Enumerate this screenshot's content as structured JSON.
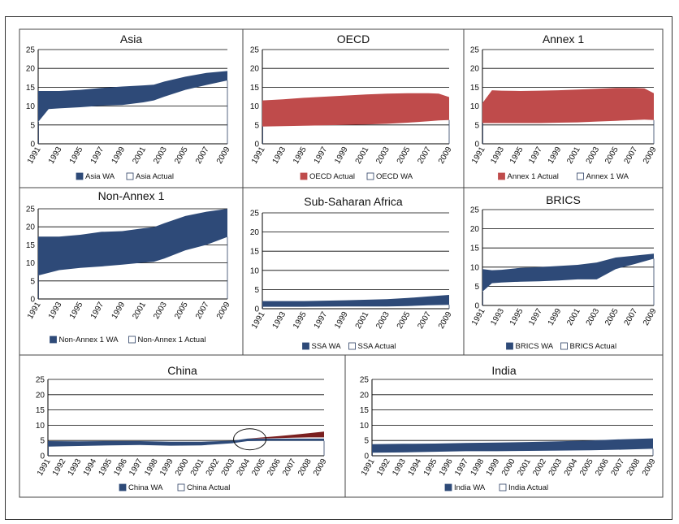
{
  "colors": {
    "wa": "#2e4a78",
    "actual_red": "#bf4b4b",
    "china_red": "#7a1f1f",
    "line": "#2b3e63",
    "panel_border": "#444444"
  },
  "chart_data": [
    {
      "id": "asia",
      "type": "area",
      "title": "Asia",
      "ylim": [
        0,
        25
      ],
      "yticks": [
        "0",
        "5",
        "10",
        "15",
        "20",
        "25"
      ],
      "xlabels": [
        "1991",
        "1993",
        "1995",
        "1997",
        "1999",
        "2001",
        "2003",
        "2005",
        "2007",
        "2009"
      ],
      "xvals": [
        1991,
        1992,
        1993,
        1995,
        1997,
        1999,
        2001,
        2002,
        2003,
        2005,
        2007,
        2009
      ],
      "upper": [
        14,
        14,
        14,
        14.3,
        14.8,
        15.2,
        15.5,
        15.7,
        16.5,
        17.8,
        18.8,
        19.3
      ],
      "lower": [
        5.8,
        9.2,
        9.4,
        9.7,
        10.1,
        10.3,
        11,
        11.5,
        12.5,
        14.3,
        15.6,
        16.8
      ],
      "fill": "wa",
      "legend": [
        "Asia WA",
        "Asia  Actual"
      ]
    },
    {
      "id": "oecd",
      "type": "area",
      "title": "OECD",
      "ylim": [
        0,
        25
      ],
      "yticks": [
        "0",
        "5",
        "10",
        "15",
        "20",
        "25"
      ],
      "xlabels": [
        "1991",
        "1993",
        "1995",
        "1997",
        "1999",
        "2001",
        "2003",
        "2005",
        "2007",
        "2009"
      ],
      "xvals": [
        1991,
        1993,
        1995,
        1997,
        1999,
        2001,
        2003,
        2005,
        2007,
        2008,
        2009
      ],
      "upper": [
        11.5,
        11.8,
        12.2,
        12.5,
        12.8,
        13.1,
        13.3,
        13.4,
        13.4,
        13.3,
        12.4
      ],
      "lower": [
        4.6,
        4.7,
        4.8,
        4.9,
        5.0,
        5.1,
        5.3,
        5.6,
        6.0,
        6.2,
        6.3
      ],
      "fill": "actual_red",
      "legend": [
        "OECD Actual",
        "OECD WA"
      ]
    },
    {
      "id": "annex1",
      "type": "area",
      "title": "Annex 1",
      "ylim": [
        0,
        25
      ],
      "yticks": [
        "0",
        "5",
        "10",
        "15",
        "20",
        "25"
      ],
      "xlabels": [
        "1991",
        "1993",
        "1995",
        "1997",
        "1999",
        "2001",
        "2003",
        "2005",
        "2007",
        "2009"
      ],
      "xvals": [
        1991,
        1992,
        1993,
        1995,
        1997,
        1999,
        2001,
        2003,
        2005,
        2007,
        2008,
        2009
      ],
      "upper": [
        10.8,
        14.2,
        14.1,
        14.0,
        14.1,
        14.2,
        14.4,
        14.6,
        14.8,
        14.8,
        14.7,
        13.4
      ],
      "lower": [
        5.5,
        5.5,
        5.5,
        5.5,
        5.5,
        5.6,
        5.7,
        5.9,
        6.1,
        6.3,
        6.4,
        6.3
      ],
      "fill": "actual_red",
      "legend": [
        "Annex 1 Actual",
        "Annex 1 WA"
      ]
    },
    {
      "id": "nonannex1",
      "type": "area",
      "title": "Non-Annex 1",
      "ylim": [
        0,
        25
      ],
      "yticks": [
        "0",
        "5",
        "10",
        "15",
        "20",
        "25"
      ],
      "xlabels": [
        "1991",
        "1993",
        "1995",
        "1997",
        "1999",
        "2001",
        "2003",
        "2005",
        "2007",
        "2009"
      ],
      "xvals": [
        1991,
        1993,
        1995,
        1997,
        1999,
        2001,
        2002,
        2003,
        2005,
        2007,
        2009
      ],
      "upper": [
        17.3,
        17.3,
        17.8,
        18.6,
        18.8,
        19.6,
        19.9,
        21,
        23,
        24.2,
        25
      ],
      "lower": [
        6.5,
        8,
        8.6,
        9,
        9.5,
        10.1,
        10.3,
        11.2,
        13.5,
        15,
        17.2
      ],
      "fill": "wa",
      "legend": [
        "Non-Annex 1 WA",
        "Non-Annex 1 Actual"
      ]
    },
    {
      "id": "ssa",
      "type": "area",
      "title": "Sub-Saharan Africa",
      "ylim": [
        0,
        25
      ],
      "yticks": [
        "0",
        "5",
        "10",
        "15",
        "20",
        "25"
      ],
      "xlabels": [
        "1991",
        "1993",
        "1995",
        "1997",
        "1999",
        "2001",
        "2003",
        "2005",
        "2007",
        "2009"
      ],
      "xvals": [
        1991,
        1995,
        1999,
        2003,
        2005,
        2007,
        2009
      ],
      "upper": [
        2,
        2,
        2.2,
        2.5,
        2.8,
        3.2,
        3.6
      ],
      "lower": [
        0.5,
        0.5,
        0.6,
        0.6,
        0.7,
        0.9,
        1.0
      ],
      "fill": "wa",
      "legend": [
        "SSA WA",
        "SSA  Actual"
      ]
    },
    {
      "id": "brics",
      "type": "area",
      "title": "BRICS",
      "ylim": [
        0,
        25
      ],
      "yticks": [
        "0",
        "5",
        "10",
        "15",
        "20",
        "25"
      ],
      "xlabels": [
        "1991",
        "1993",
        "1995",
        "1997",
        "1999",
        "2001",
        "2003",
        "2005",
        "2007",
        "2009"
      ],
      "xvals": [
        1991,
        1992,
        1993,
        1995,
        1997,
        1999,
        2001,
        2003,
        2005,
        2007,
        2009
      ],
      "upper": [
        9.5,
        9.2,
        9.3,
        9.8,
        10,
        10.3,
        10.6,
        11.2,
        12.5,
        13.0,
        13.5
      ],
      "lower": [
        3.6,
        5.8,
        6,
        6.2,
        6.3,
        6.5,
        6.8,
        6.8,
        9.5,
        10.8,
        12.2
      ],
      "fill": "wa",
      "legend": [
        "BRICS WA",
        "BRICS Actual"
      ]
    },
    {
      "id": "china",
      "type": "area",
      "title": "China",
      "ylim": [
        0,
        25
      ],
      "yticks": [
        "0",
        "5",
        "10",
        "15",
        "20",
        "25"
      ],
      "xlabels": [
        "1991",
        "1992",
        "1993",
        "1994",
        "1995",
        "1996",
        "1997",
        "1998",
        "1999",
        "2000",
        "2001",
        "2002",
        "2003",
        "2004",
        "2005",
        "2006",
        "2007",
        "2008",
        "2009"
      ],
      "xvals": [
        1991,
        1993,
        1995,
        1997,
        1999,
        2001,
        2003,
        2004,
        2005,
        2006,
        2007,
        2008,
        2009
      ],
      "upper": [
        4.8,
        4.7,
        4.8,
        4.8,
        4.6,
        4.6,
        4.9,
        5.6,
        5.6,
        5.6,
        5.6,
        5.6,
        5.6
      ],
      "lower": [
        3.0,
        3.2,
        3.4,
        3.5,
        3.3,
        3.4,
        4.1,
        4.8,
        4.9,
        4.9,
        4.9,
        4.9,
        4.9
      ],
      "actual_xvals": [
        2004,
        2005,
        2006,
        2007,
        2008,
        2009
      ],
      "actual_upper": [
        5.6,
        6.0,
        6.4,
        6.9,
        7.4,
        7.9
      ],
      "actual_lower": [
        5.6,
        5.7,
        5.8,
        5.9,
        6.0,
        6.0
      ],
      "fill": "wa",
      "legend": [
        "China  WA",
        "China   Actual"
      ]
    },
    {
      "id": "india",
      "type": "area",
      "title": "India",
      "ylim": [
        0,
        25
      ],
      "yticks": [
        "0",
        "5",
        "10",
        "15",
        "20",
        "25"
      ],
      "xlabels": [
        "1991",
        "1992",
        "1993",
        "1994",
        "1995",
        "1996",
        "1997",
        "1998",
        "1999",
        "2000",
        "2001",
        "2002",
        "2003",
        "2004",
        "2005",
        "2006",
        "2007",
        "2008",
        "2009"
      ],
      "xvals": [
        1991,
        1993,
        1995,
        1997,
        1999,
        2001,
        2003,
        2005,
        2007,
        2009
      ],
      "upper": [
        3.8,
        3.9,
        4.0,
        4.2,
        4.3,
        4.5,
        4.7,
        5.0,
        5.4,
        5.7
      ],
      "lower": [
        1.0,
        1.1,
        1.3,
        1.5,
        1.5,
        1.6,
        1.7,
        1.8,
        2.0,
        2.3
      ],
      "fill": "wa",
      "legend": [
        "India WA",
        "India  Actual"
      ]
    }
  ]
}
